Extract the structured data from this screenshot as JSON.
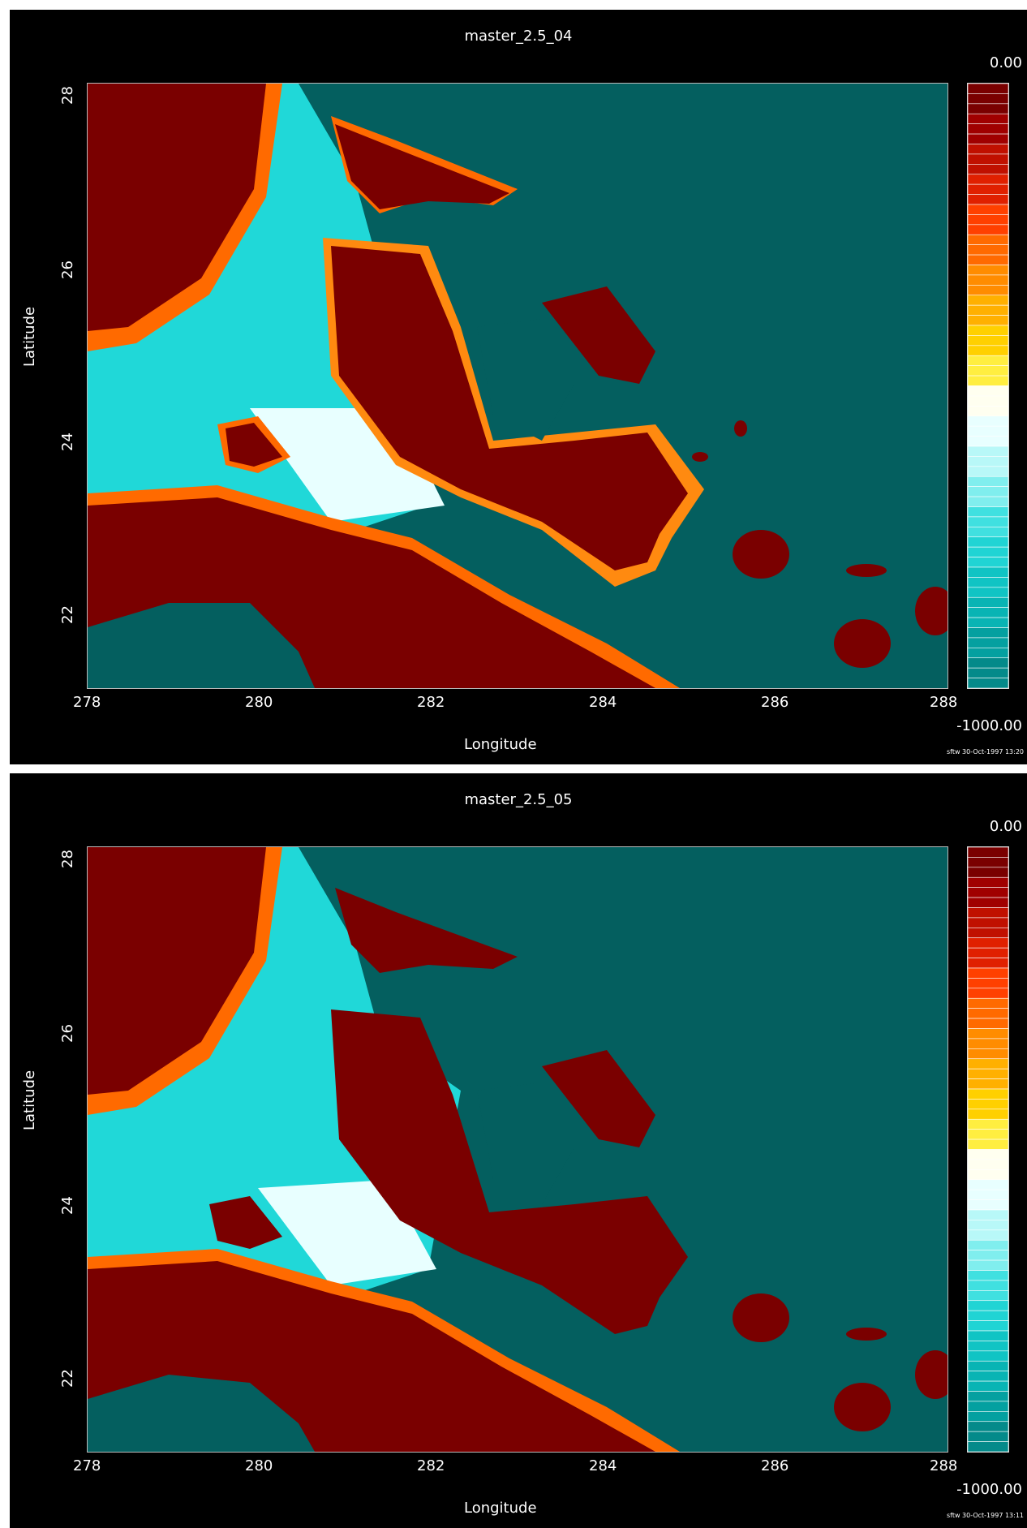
{
  "panels": [
    {
      "title": "master_2.5_04",
      "colorbar": {
        "max_label": "0.00",
        "min_label": "-1000.00"
      },
      "stamp": "sftw 30-Oct-1997 13:20"
    },
    {
      "title": "master_2.5_05",
      "colorbar": {
        "max_label": "0.00",
        "min_label": "-1000.00"
      },
      "stamp": "sftw 30-Oct-1997 13:11"
    }
  ],
  "colors": {
    "ocean": "#045f5f",
    "land": "#7a0000",
    "shallow_cyan": "#20d8d8",
    "shallow_white": "#e8ffff",
    "coast_orange": "#ff6a00",
    "coast_yellow": "#ffe000"
  },
  "chart_data": [
    {
      "type": "heatmap",
      "title": "master_2.5_04",
      "xlabel": "Longitude",
      "ylabel": "Latitude",
      "xlim": [
        278,
        288
      ],
      "ylim": [
        21,
        28
      ],
      "xticks": [
        "278",
        "280",
        "282",
        "284",
        "286",
        "288"
      ],
      "yticks": [
        "22",
        "24",
        "26",
        "28"
      ],
      "colorbar": {
        "max": 0.0,
        "min": -1000.0,
        "max_label": "0.00",
        "min_label": "-1000.00"
      }
    },
    {
      "type": "heatmap",
      "title": "master_2.5_05",
      "xlabel": "Longitude",
      "ylabel": "Latitude",
      "xlim": [
        278,
        288
      ],
      "ylim": [
        21,
        28
      ],
      "xticks": [
        "278",
        "280",
        "282",
        "284",
        "286",
        "288"
      ],
      "yticks": [
        "22",
        "24",
        "26",
        "28"
      ],
      "colorbar": {
        "max": 0.0,
        "min": -1000.0,
        "max_label": "0.00",
        "min_label": "-1000.00"
      }
    }
  ]
}
